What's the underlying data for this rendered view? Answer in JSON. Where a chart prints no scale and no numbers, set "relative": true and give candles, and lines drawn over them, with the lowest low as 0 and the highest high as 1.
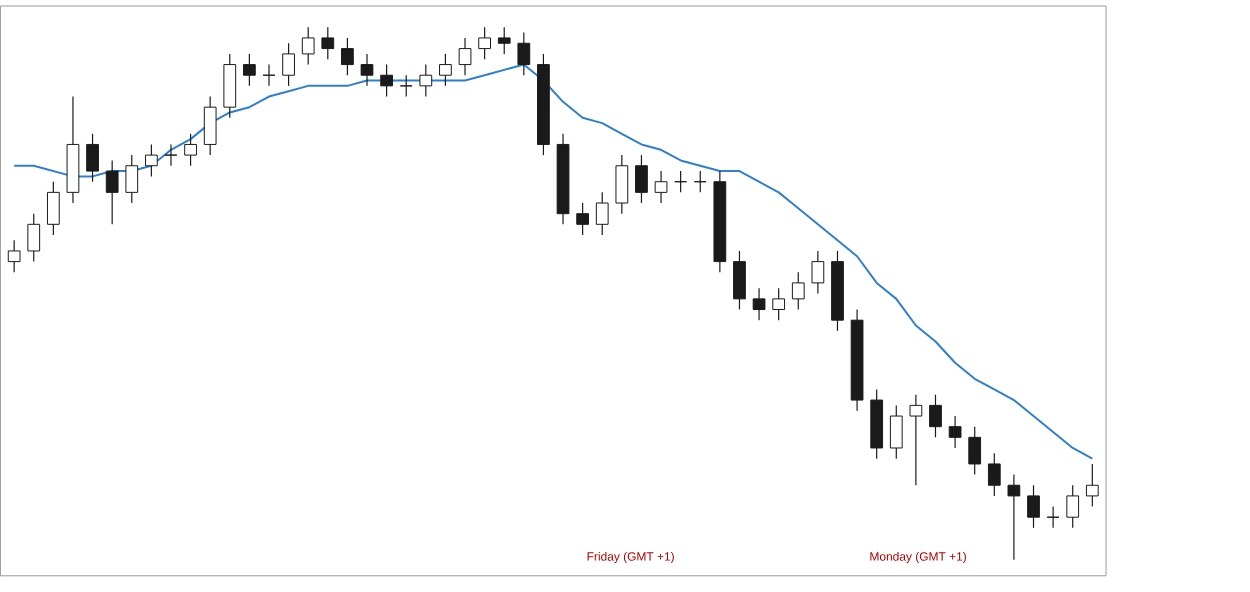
{
  "chart_data": {
    "type": "candlestick",
    "relative": true,
    "color": "#1a1a1a",
    "categories": [
      null,
      null,
      null,
      null,
      null,
      null,
      null,
      null,
      null,
      null,
      null,
      null,
      null,
      null,
      null,
      null,
      null,
      null,
      null,
      null,
      null,
      null,
      null,
      null,
      null,
      null,
      null,
      null,
      null,
      null,
      null,
      null,
      null,
      null,
      null,
      null,
      null,
      null,
      null,
      null,
      null,
      null,
      null,
      null,
      null,
      null,
      null,
      null,
      null,
      null,
      null,
      null,
      null,
      null,
      null,
      null
    ],
    "ohlc": [
      [
        0.56,
        0.6,
        0.54,
        0.58
      ],
      [
        0.58,
        0.65,
        0.56,
        0.63
      ],
      [
        0.63,
        0.71,
        0.61,
        0.69
      ],
      [
        0.69,
        0.87,
        0.67,
        0.78
      ],
      [
        0.78,
        0.8,
        0.71,
        0.73
      ],
      [
        0.73,
        0.75,
        0.63,
        0.69
      ],
      [
        0.69,
        0.76,
        0.67,
        0.74
      ],
      [
        0.74,
        0.78,
        0.72,
        0.76
      ],
      [
        0.76,
        0.78,
        0.74,
        0.76
      ],
      [
        0.76,
        0.8,
        0.74,
        0.78
      ],
      [
        0.78,
        0.87,
        0.76,
        0.85
      ],
      [
        0.85,
        0.95,
        0.83,
        0.93
      ],
      [
        0.93,
        0.95,
        0.89,
        0.91
      ],
      [
        0.91,
        0.93,
        0.89,
        0.91
      ],
      [
        0.91,
        0.97,
        0.89,
        0.95
      ],
      [
        0.95,
        1.0,
        0.93,
        0.98
      ],
      [
        0.98,
        1.0,
        0.94,
        0.96
      ],
      [
        0.96,
        0.98,
        0.91,
        0.93
      ],
      [
        0.93,
        0.95,
        0.89,
        0.91
      ],
      [
        0.91,
        0.93,
        0.87,
        0.89
      ],
      [
        0.89,
        0.91,
        0.87,
        0.89
      ],
      [
        0.89,
        0.93,
        0.87,
        0.91
      ],
      [
        0.91,
        0.95,
        0.89,
        0.93
      ],
      [
        0.93,
        0.98,
        0.91,
        0.96
      ],
      [
        0.96,
        1.0,
        0.94,
        0.98
      ],
      [
        0.98,
        1.0,
        0.95,
        0.97
      ],
      [
        0.97,
        0.99,
        0.91,
        0.93
      ],
      [
        0.93,
        0.95,
        0.76,
        0.78
      ],
      [
        0.78,
        0.8,
        0.63,
        0.65
      ],
      [
        0.65,
        0.67,
        0.61,
        0.63
      ],
      [
        0.63,
        0.69,
        0.61,
        0.67
      ],
      [
        0.67,
        0.76,
        0.65,
        0.74
      ],
      [
        0.74,
        0.76,
        0.67,
        0.69
      ],
      [
        0.69,
        0.73,
        0.67,
        0.71
      ],
      [
        0.71,
        0.73,
        0.69,
        0.71
      ],
      [
        0.71,
        0.73,
        0.69,
        0.71
      ],
      [
        0.71,
        0.73,
        0.54,
        0.56
      ],
      [
        0.56,
        0.58,
        0.47,
        0.49
      ],
      [
        0.49,
        0.51,
        0.45,
        0.47
      ],
      [
        0.47,
        0.51,
        0.45,
        0.49
      ],
      [
        0.49,
        0.54,
        0.47,
        0.52
      ],
      [
        0.52,
        0.58,
        0.5,
        0.56
      ],
      [
        0.56,
        0.58,
        0.43,
        0.45
      ],
      [
        0.45,
        0.47,
        0.28,
        0.3
      ],
      [
        0.3,
        0.32,
        0.19,
        0.21
      ],
      [
        0.21,
        0.29,
        0.19,
        0.27
      ],
      [
        0.27,
        0.31,
        0.14,
        0.29
      ],
      [
        0.29,
        0.31,
        0.23,
        0.25
      ],
      [
        0.25,
        0.27,
        0.21,
        0.23
      ],
      [
        0.23,
        0.25,
        0.16,
        0.18
      ],
      [
        0.18,
        0.2,
        0.12,
        0.14
      ],
      [
        0.14,
        0.16,
        0.0,
        0.12
      ],
      [
        0.12,
        0.14,
        0.06,
        0.08
      ],
      [
        0.08,
        0.1,
        0.06,
        0.08
      ],
      [
        0.08,
        0.14,
        0.06,
        0.12
      ],
      [
        0.12,
        0.18,
        0.1,
        0.14
      ]
    ],
    "series": [
      {
        "type": "line",
        "color": "#2f7fd0",
        "values": [
          0.74,
          0.74,
          0.73,
          0.72,
          0.72,
          0.73,
          0.73,
          0.74,
          0.77,
          0.79,
          0.82,
          0.84,
          0.85,
          0.87,
          0.88,
          0.89,
          0.89,
          0.89,
          0.9,
          0.9,
          0.9,
          0.9,
          0.9,
          0.9,
          0.91,
          0.92,
          0.93,
          0.9,
          0.86,
          0.83,
          0.82,
          0.8,
          0.78,
          0.77,
          0.75,
          0.74,
          0.73,
          0.73,
          0.71,
          0.69,
          0.66,
          0.63,
          0.6,
          0.57,
          0.52,
          0.49,
          0.44,
          0.41,
          0.37,
          0.34,
          0.32,
          0.3,
          0.27,
          0.24,
          0.21,
          0.19
        ]
      }
    ],
    "annotations": [
      "Friday (GMT +1)",
      "Monday (GMT +1)"
    ]
  }
}
